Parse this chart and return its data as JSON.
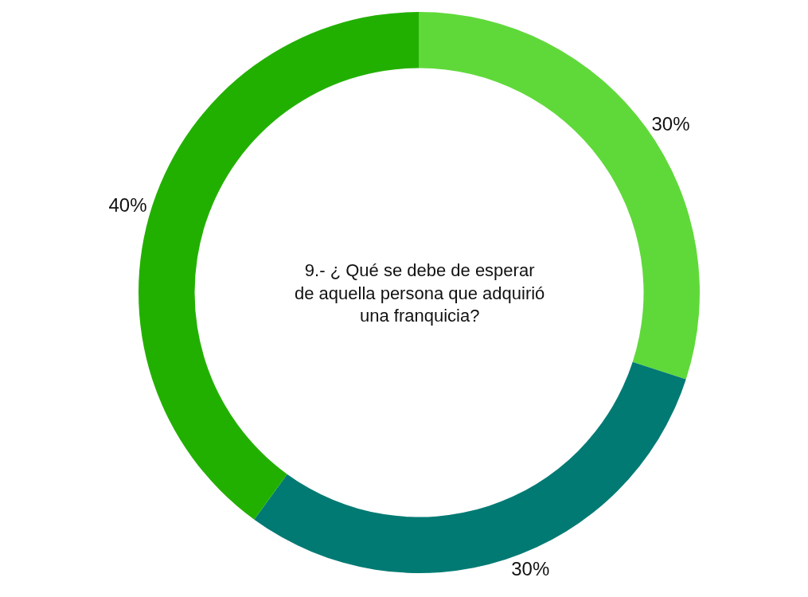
{
  "chart_data": {
    "type": "donut",
    "title": "9.- ¿ Qué se debe de esperar\nde aquella persona que adquirió\nuna franquicia?",
    "categories": [
      null,
      null,
      null
    ],
    "values": [
      30,
      30,
      40
    ],
    "colors": [
      "#5fd93a",
      "#007a73",
      "#22b000"
    ],
    "value_labels": [
      "30%",
      "30%",
      "40%"
    ],
    "legend": false
  }
}
